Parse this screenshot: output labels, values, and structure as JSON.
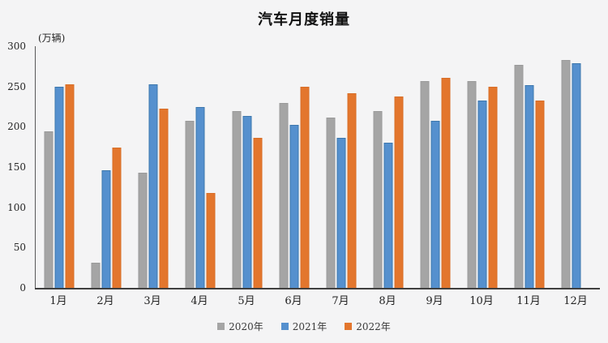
{
  "chart_data": {
    "type": "bar",
    "title": "汽车月度销量",
    "unit_label": "(万辆)",
    "categories": [
      "1月",
      "2月",
      "3月",
      "4月",
      "5月",
      "6月",
      "7月",
      "8月",
      "9月",
      "10月",
      "11月",
      "12月"
    ],
    "series": [
      {
        "name": "2020年",
        "color": "#a5a5a5",
        "border": "#9a9a9a",
        "values": [
          194,
          31,
          143,
          207,
          219,
          230,
          211,
          219,
          257,
          257,
          277,
          283
        ]
      },
      {
        "name": "2021年",
        "color": "#5590ce",
        "border": "#3d77ad",
        "values": [
          250,
          146,
          253,
          225,
          213,
          202,
          186,
          180,
          207,
          233,
          252,
          279
        ]
      },
      {
        "name": "2022年",
        "color": "#e3762d",
        "border": "#d86e28",
        "values": [
          253,
          174,
          223,
          118,
          186,
          250,
          242,
          238,
          261,
          250,
          233,
          null
        ]
      }
    ],
    "y_axis": {
      "min": 0,
      "max": 300,
      "tick_step": 50,
      "ticks": [
        0,
        50,
        100,
        150,
        200,
        250,
        300
      ]
    },
    "legend_position": "bottom",
    "grid": false,
    "colors": {
      "background": "#f4f4f5",
      "axis": "#3f3f3f",
      "text": "#1f1f1f"
    }
  }
}
